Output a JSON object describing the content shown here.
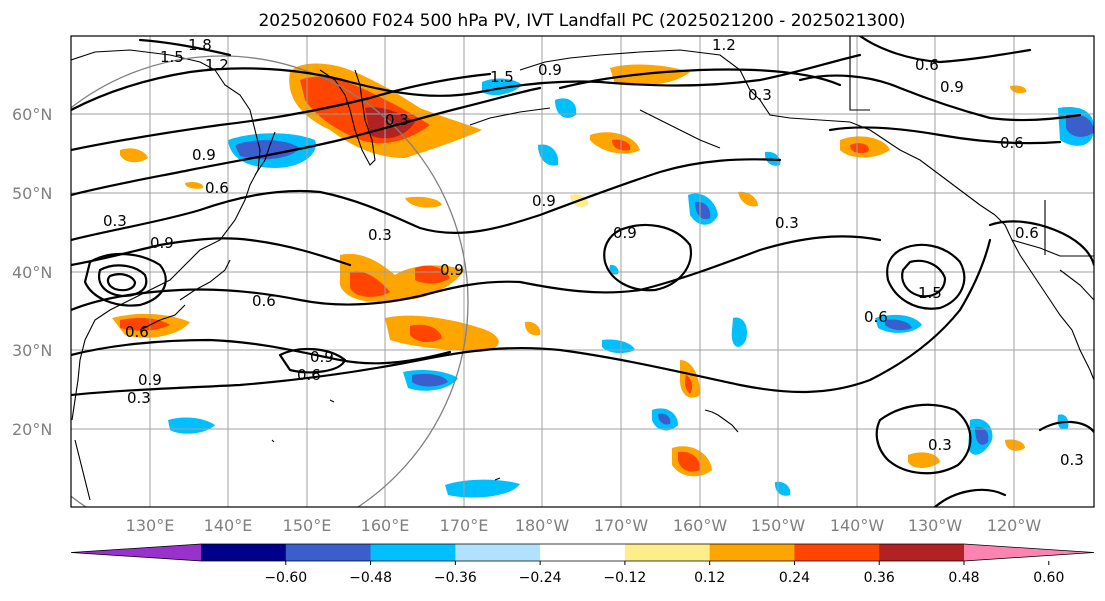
{
  "title": "2025020600 F024 500 hPa PV, IVT Landfall PC (2025021200 - 2025021300)",
  "lat_labels": [
    "60°N",
    "50°N",
    "40°N",
    "30°N",
    "20°N"
  ],
  "lon_labels": [
    "130°E",
    "140°E",
    "150°E",
    "160°E",
    "170°E",
    "180°W",
    "170°W",
    "160°W",
    "150°W",
    "140°W",
    "130°W",
    "120°W"
  ],
  "colorbar": {
    "colors": [
      "#9932cc",
      "#00008b",
      "#3a5fcd",
      "#00bfff",
      "#b0e2ff",
      "#ffffff",
      "#ffec8b",
      "#ffa500",
      "#ff4500",
      "#b22222",
      "#ff83b0"
    ],
    "tick_labels": [
      "-0.60",
      "-0.48",
      "-0.36",
      "-0.24",
      "-0.12",
      "0.12",
      "0.24",
      "0.36",
      "0.48",
      "0.60"
    ]
  },
  "contour_labels": [
    "1.5",
    "1.8",
    "1.2",
    "1.2",
    "1.5",
    "0.9",
    "0.3",
    "0.6",
    "0.9",
    "0.6",
    "0.9",
    "0.6",
    "0.3",
    "0.9",
    "0.6",
    "0.3",
    "0.9",
    "0.3",
    "0.9",
    "0.9",
    "0.6",
    "0.9",
    "0.3",
    "0.9",
    "0.6",
    "0.3",
    "0.6",
    "1.5",
    "0.6",
    "0.3",
    "0.3"
  ],
  "map": {
    "projection": "equirectangular",
    "lon_range": "120°E to 115°W",
    "lat_range": "10°N to 70°N",
    "shading_variable": "IVT Landfall PC",
    "contour_variable": "500 hPa PV",
    "contour_color": "#000000",
    "gridline_color": "#a0a0a0"
  }
}
